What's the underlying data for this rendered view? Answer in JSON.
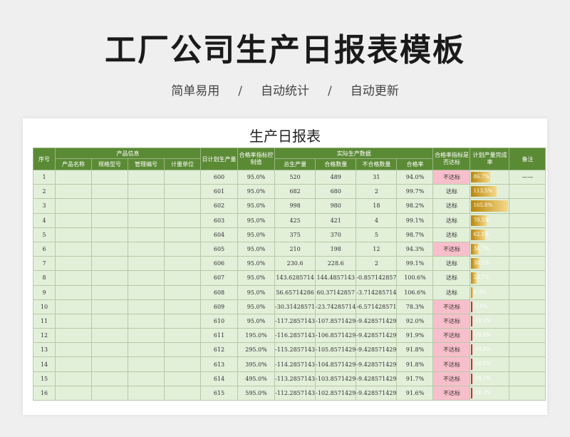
{
  "page": {
    "title": "工厂公司生产日报表模板",
    "features": [
      "简单易用",
      "自动统计",
      "自动更新"
    ],
    "separator": "/"
  },
  "sheet": {
    "title": "生产日报表",
    "headers": {
      "seq": "序号",
      "product_info": "产品信息",
      "product_name": "产品名称",
      "spec_model": "规格型号",
      "mgmt_code": "管理编号",
      "unit": "计量单位",
      "daily_plan": "日计划生产量",
      "pass_target": "合格率指标控制值",
      "actual": "实际生产数据",
      "total": "总生产量",
      "pass_qty": "合格数量",
      "fail_qty": "不合格数量",
      "pass_rate": "合格率",
      "meets": "合格率指标是否达标",
      "plan_rate": "计划产量完成率",
      "remark": "备注"
    },
    "colors": {
      "header_bg": "#5b8a35",
      "cell_bg": "#e2efd9",
      "fail_bg": "#f7bfcb",
      "bar": "#d4a017",
      "bar_negative": "#e8202b"
    },
    "rows": [
      {
        "seq": "1",
        "plan": "600",
        "target": "95.0%",
        "total": "520",
        "pass": "489",
        "fail": "31",
        "rate": "94.0%",
        "status": "不达标",
        "bad": true,
        "completion": 0.867,
        "pct": "86.7%",
        "remark": "——"
      },
      {
        "seq": "2",
        "plan": "601",
        "target": "95.0%",
        "total": "682",
        "pass": "680",
        "fail": "2",
        "rate": "99.7%",
        "status": "达标",
        "bad": false,
        "completion": 1.135,
        "pct": "113.5%",
        "remark": ""
      },
      {
        "seq": "3",
        "plan": "602",
        "target": "95.0%",
        "total": "998",
        "pass": "980",
        "fail": "18",
        "rate": "98.2%",
        "status": "达标",
        "bad": false,
        "completion": 1.658,
        "pct": "165.8%",
        "remark": ""
      },
      {
        "seq": "4",
        "plan": "603",
        "target": "95.0%",
        "total": "425",
        "pass": "421",
        "fail": "4",
        "rate": "99.1%",
        "status": "达标",
        "bad": false,
        "completion": 0.705,
        "pct": "70.5%",
        "remark": ""
      },
      {
        "seq": "5",
        "plan": "604",
        "target": "95.0%",
        "total": "375",
        "pass": "370",
        "fail": "5",
        "rate": "98.7%",
        "status": "达标",
        "bad": false,
        "completion": 0.621,
        "pct": "62.1%",
        "remark": ""
      },
      {
        "seq": "6",
        "plan": "605",
        "target": "95.0%",
        "total": "210",
        "pass": "198",
        "fail": "12",
        "rate": "94.3%",
        "status": "不达标",
        "bad": true,
        "completion": 0.347,
        "pct": "34.7%",
        "remark": ""
      },
      {
        "seq": "7",
        "plan": "606",
        "target": "95.0%",
        "total": "230.6",
        "pass": "228.6",
        "fail": "2",
        "rate": "99.1%",
        "status": "达标",
        "bad": false,
        "completion": 0.381,
        "pct": "38.1%",
        "remark": ""
      },
      {
        "seq": "8",
        "plan": "607",
        "target": "95.0%",
        "total": "143.6285714",
        "pass": "144.4857143",
        "fail": "-0.857142857",
        "rate": "100.6%",
        "status": "达标",
        "bad": false,
        "completion": 0.237,
        "pct": "23.7%",
        "remark": ""
      },
      {
        "seq": "9",
        "plan": "608",
        "target": "95.0%",
        "total": "56.65714286",
        "pass": "60.37142857",
        "fail": "-3.714285714",
        "rate": "106.6%",
        "status": "达标",
        "bad": false,
        "completion": 0.093,
        "pct": "9.3%",
        "remark": ""
      },
      {
        "seq": "10",
        "plan": "609",
        "target": "95.0%",
        "total": "-30.31428571",
        "pass": "-23.74285714",
        "fail": "-6.571428571",
        "rate": "78.3%",
        "status": "不达标",
        "bad": true,
        "completion": -0.05,
        "pct": "-5.0%",
        "remark": ""
      },
      {
        "seq": "11",
        "plan": "610",
        "target": "95.0%",
        "total": "-117.2857143",
        "pass": "-107.8571429",
        "fail": "-9.428571429",
        "rate": "92.0%",
        "status": "不达标",
        "bad": true,
        "completion": -0.192,
        "pct": "-19.2%",
        "remark": ""
      },
      {
        "seq": "12",
        "plan": "611",
        "target": "195.0%",
        "total": "-116.2857143",
        "pass": "-106.8571429",
        "fail": "-9.428571429",
        "rate": "91.9%",
        "status": "不达标",
        "bad": true,
        "completion": -0.19,
        "pct": "-19.0%",
        "remark": ""
      },
      {
        "seq": "13",
        "plan": "612",
        "target": "295.0%",
        "total": "-115.2857143",
        "pass": "-105.8571429",
        "fail": "-9.428571429",
        "rate": "91.8%",
        "status": "不达标",
        "bad": true,
        "completion": -0.188,
        "pct": "-18.8%",
        "remark": ""
      },
      {
        "seq": "14",
        "plan": "613",
        "target": "395.0%",
        "total": "-114.2857143",
        "pass": "-104.8571429",
        "fail": "-9.428571429",
        "rate": "91.8%",
        "status": "不达标",
        "bad": true,
        "completion": -0.186,
        "pct": "-18.6%",
        "remark": ""
      },
      {
        "seq": "15",
        "plan": "614",
        "target": "495.0%",
        "total": "-113.2857143",
        "pass": "-103.8571429",
        "fail": "-9.428571429",
        "rate": "91.7%",
        "status": "不达标",
        "bad": true,
        "completion": -0.185,
        "pct": "-18.5%",
        "remark": ""
      },
      {
        "seq": "16",
        "plan": "615",
        "target": "595.0%",
        "total": "-112.2857143",
        "pass": "-102.8571429",
        "fail": "-9.428571429",
        "rate": "91.6%",
        "status": "不达标",
        "bad": true,
        "completion": -0.183,
        "pct": "-18.3%",
        "remark": ""
      }
    ]
  }
}
